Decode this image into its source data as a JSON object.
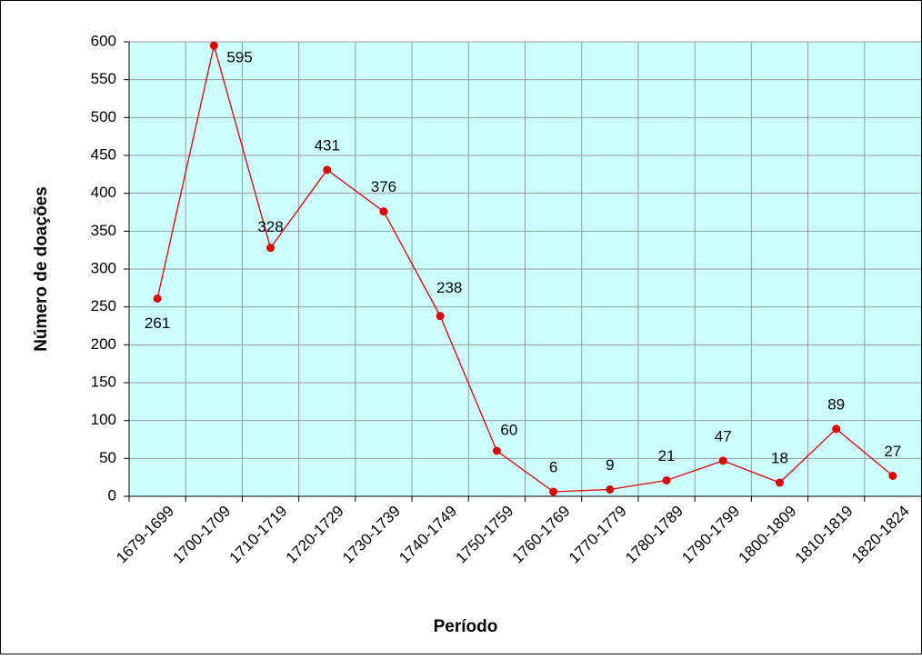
{
  "chart_data": {
    "type": "line",
    "xlabel": "Período",
    "ylabel": "Número de doações",
    "categories": [
      "1679-1699",
      "1700-1709",
      "1710-1719",
      "1720-1729",
      "1730-1739",
      "1740-1749",
      "1750-1759",
      "1760-1769",
      "1770-1779",
      "1780-1789",
      "1790-1799",
      "1800-1809",
      "1810-1819",
      "1820-1824"
    ],
    "series": [
      {
        "color": "#e00000",
        "values": [
          261,
          595,
          328,
          431,
          376,
          238,
          60,
          6,
          9,
          21,
          47,
          18,
          89,
          27
        ]
      }
    ],
    "ylim": [
      0,
      600
    ],
    "yticks": [
      0,
      50,
      100,
      150,
      200,
      250,
      300,
      350,
      400,
      450,
      500,
      550,
      600
    ],
    "grid": true
  }
}
